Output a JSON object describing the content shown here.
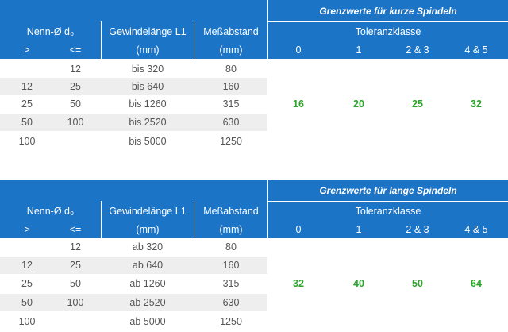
{
  "colors": {
    "header_bg": "#1b74c6",
    "header_text": "#ffffff",
    "row_shade": "#eeeeee",
    "body_text": "#555555",
    "value_text": "#2aa52a"
  },
  "tables": [
    {
      "title": "Grenzwerte für kurze Spindeln",
      "col_nenn": "Nenn-Ø d₀",
      "col_gewinde": "Gewindelänge L1",
      "col_mess": "Meßabstand",
      "col_toleranz": "Toleranzklasse",
      "sub_gt": ">",
      "sub_le": "<=",
      "sub_mm1": "(mm)",
      "sub_mm2": "(mm)",
      "classes": [
        "0",
        "1",
        "2 & 3",
        "4 & 5"
      ],
      "rows": [
        {
          "gt": "",
          "le": "12",
          "laenge": "bis 320",
          "abstand": "80"
        },
        {
          "gt": "12",
          "le": "25",
          "laenge": "bis 640",
          "abstand": "160"
        },
        {
          "gt": "25",
          "le": "50",
          "laenge": "bis 1260",
          "abstand": "315"
        },
        {
          "gt": "50",
          "le": "100",
          "laenge": "bis 2520",
          "abstand": "630"
        },
        {
          "gt": "100",
          "le": "",
          "laenge": "bis 5000",
          "abstand": "1250"
        }
      ],
      "values": [
        "16",
        "20",
        "25",
        "32"
      ]
    },
    {
      "title": "Grenzwerte für lange Spindeln",
      "col_nenn": "Nenn-Ø d₀",
      "col_gewinde": "Gewindelänge L1",
      "col_mess": "Meßabstand",
      "col_toleranz": "Toleranzklasse",
      "sub_gt": ">",
      "sub_le": "<=",
      "sub_mm1": "(mm)",
      "sub_mm2": "(mm)",
      "classes": [
        "0",
        "1",
        "2 & 3",
        "4 & 5"
      ],
      "rows": [
        {
          "gt": "",
          "le": "12",
          "laenge": "ab 320",
          "abstand": "80"
        },
        {
          "gt": "12",
          "le": "25",
          "laenge": "ab 640",
          "abstand": "160"
        },
        {
          "gt": "25",
          "le": "50",
          "laenge": "ab 1260",
          "abstand": "315"
        },
        {
          "gt": "50",
          "le": "100",
          "laenge": "ab 2520",
          "abstand": "630"
        },
        {
          "gt": "100",
          "le": "",
          "laenge": "ab 5000",
          "abstand": "1250"
        }
      ],
      "values": [
        "32",
        "40",
        "50",
        "64"
      ]
    }
  ]
}
